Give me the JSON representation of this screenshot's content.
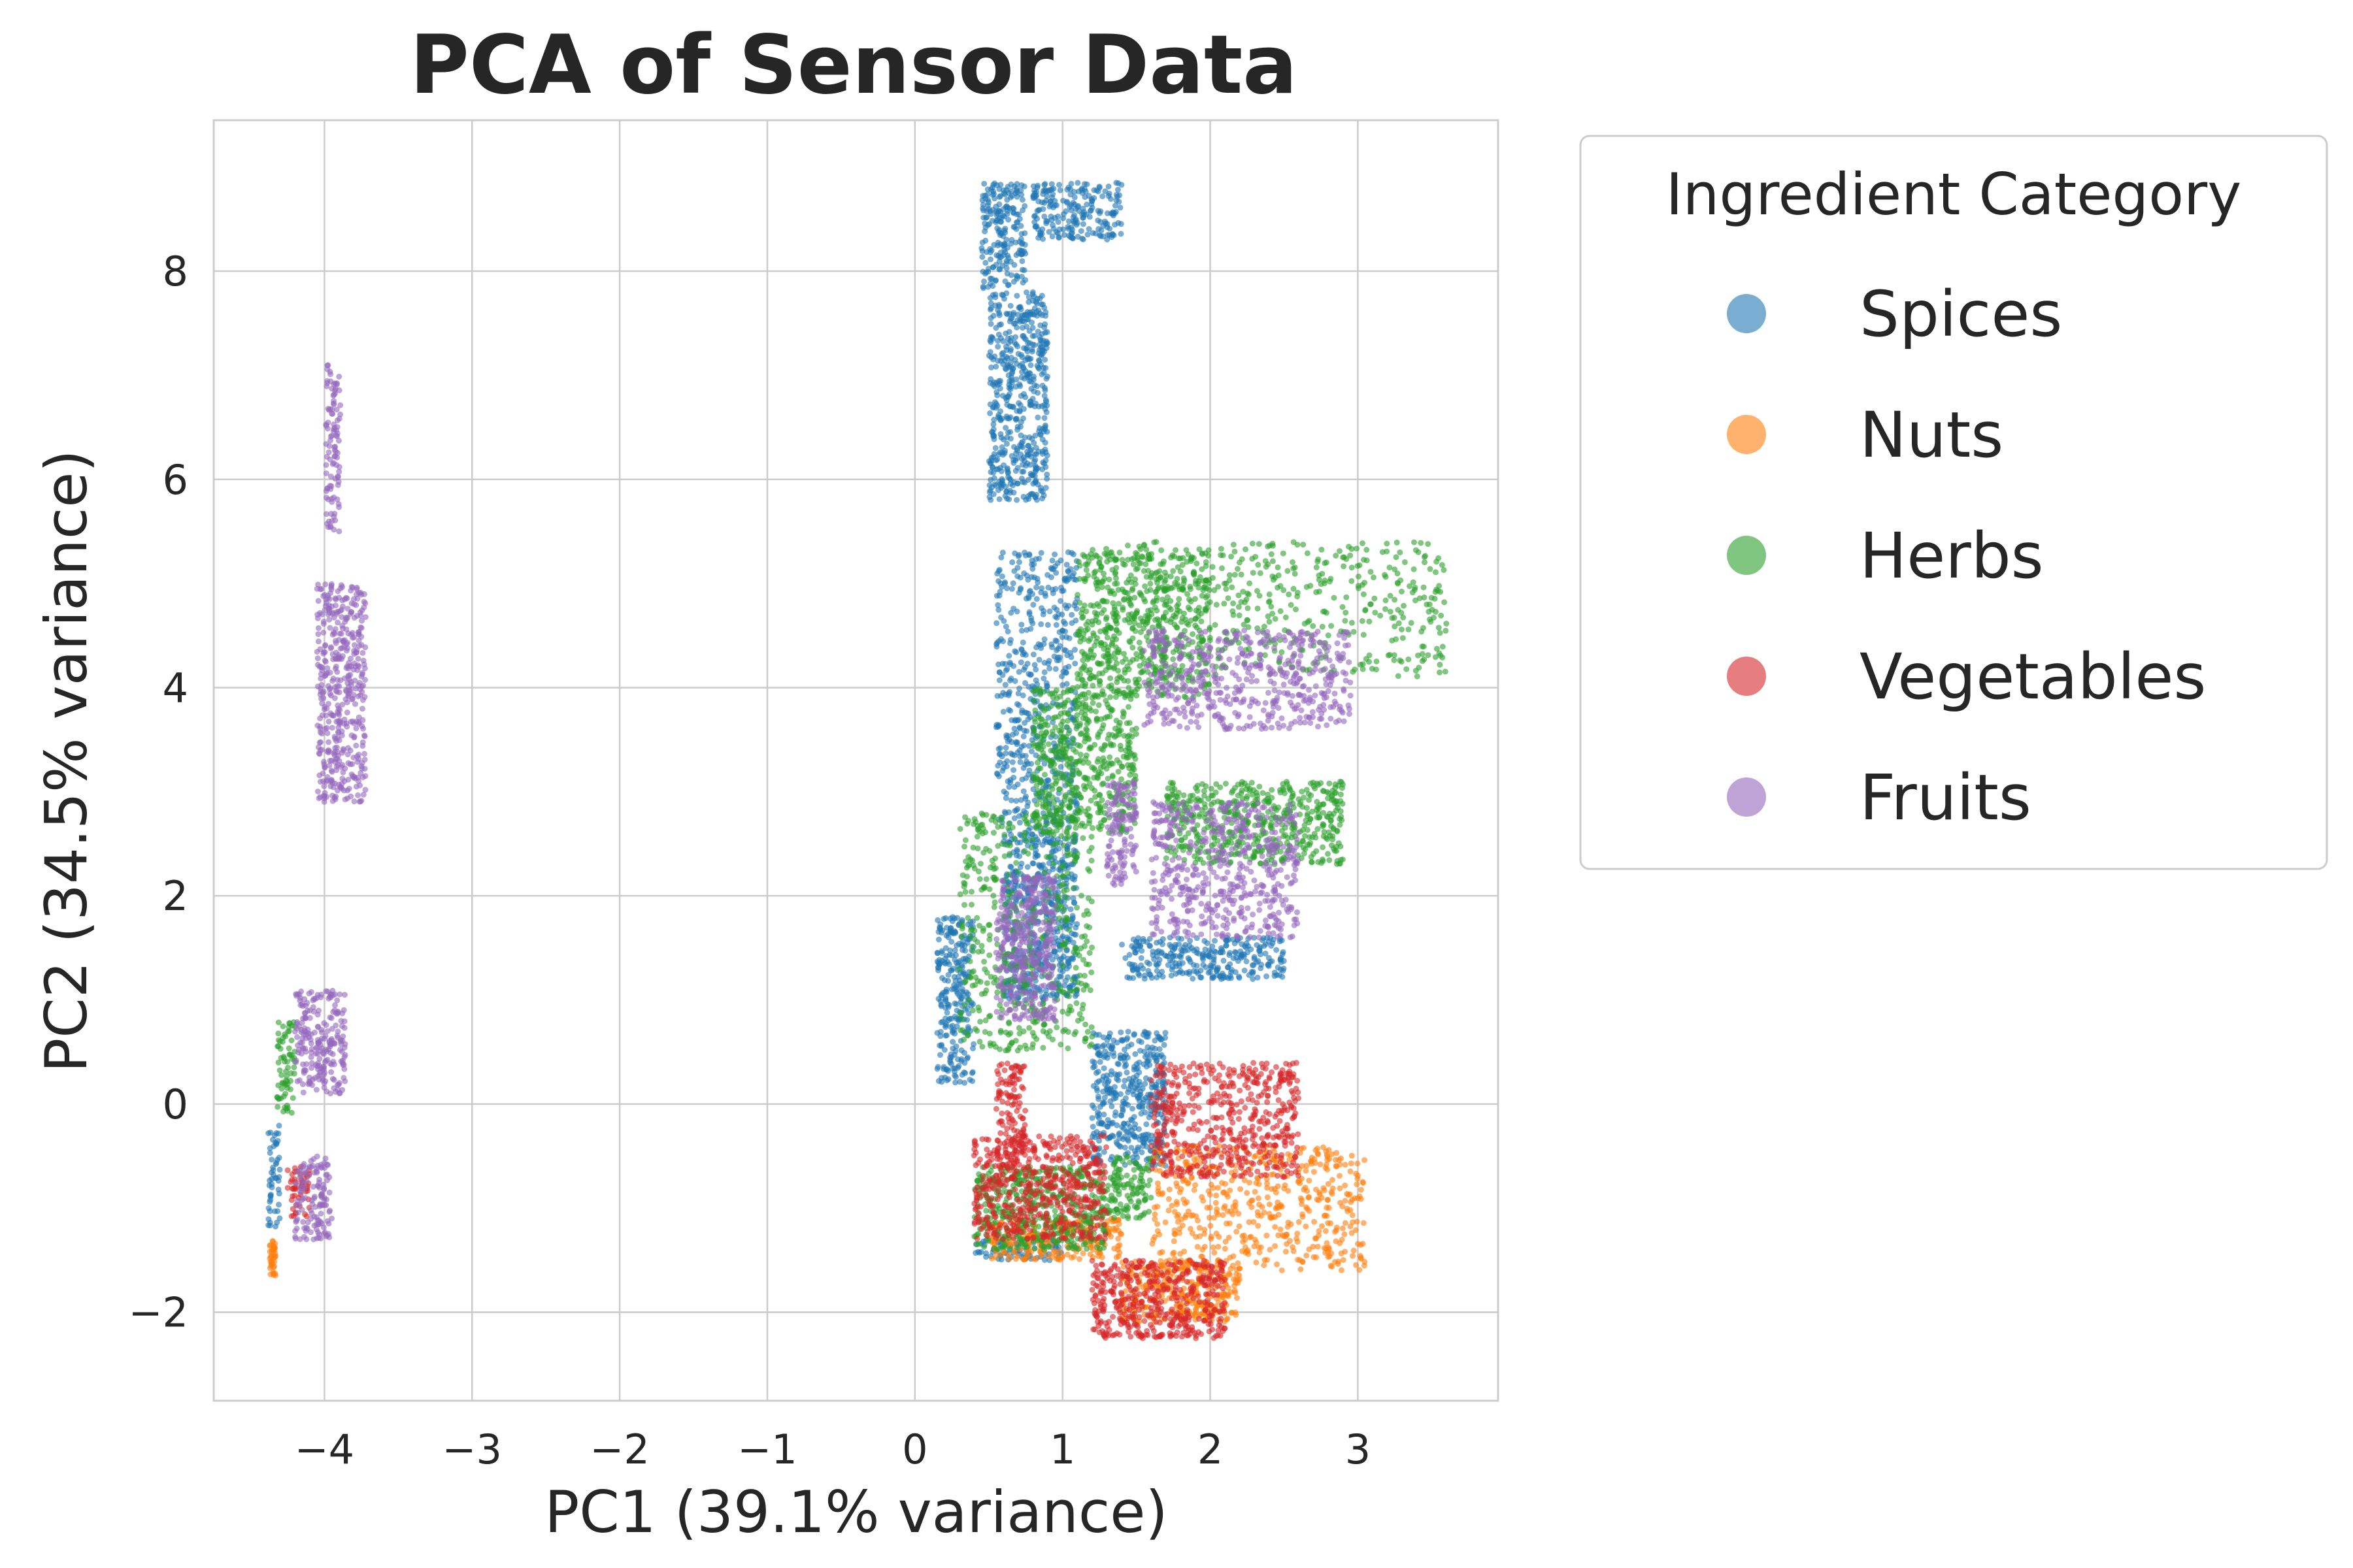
{
  "chart_data": {
    "type": "scatter",
    "title": "PCA of Sensor Data",
    "xlabel": "PC1 (39.1% variance)",
    "ylabel": "PC2 (34.5% variance)",
    "xlim": [
      -4.75,
      3.95
    ],
    "ylim": [
      -2.85,
      9.45
    ],
    "xticks": [
      -4,
      -3,
      -2,
      -1,
      0,
      1,
      2,
      3
    ],
    "yticks": [
      -2,
      0,
      2,
      4,
      6,
      8
    ],
    "xtick_labels": [
      "−4",
      "−3",
      "−2",
      "−1",
      "0",
      "1",
      "2",
      "3"
    ],
    "ytick_labels": [
      "−2",
      "0",
      "2",
      "4",
      "6",
      "8"
    ],
    "grid": true,
    "legend": {
      "title": "Ingredient Category",
      "placement": "outside-right-top"
    },
    "series": [
      {
        "name": "Spices",
        "color": "#1f77b4",
        "clusters": [
          {
            "x": [
              0.45,
              0.75
            ],
            "y": [
              7.8,
              8.85
            ]
          },
          {
            "x": [
              0.8,
              1.4
            ],
            "y": [
              8.3,
              8.85
            ]
          },
          {
            "x": [
              0.5,
              0.9
            ],
            "y": [
              5.8,
              7.8
            ]
          },
          {
            "x": [
              0.55,
              1.1
            ],
            "y": [
              2.6,
              5.3
            ]
          },
          {
            "x": [
              0.6,
              1.1
            ],
            "y": [
              1.0,
              2.6
            ]
          },
          {
            "x": [
              0.15,
              0.4
            ],
            "y": [
              0.2,
              1.8
            ]
          },
          {
            "x": [
              1.2,
              1.7
            ],
            "y": [
              -0.6,
              0.7
            ]
          },
          {
            "x": [
              1.4,
              2.5
            ],
            "y": [
              1.2,
              1.6
            ]
          },
          {
            "x": [
              0.4,
              1.0
            ],
            "y": [
              -1.5,
              -1.3
            ]
          },
          {
            "x": [
              -4.38,
              -4.3
            ],
            "y": [
              -1.2,
              -0.2
            ]
          }
        ]
      },
      {
        "name": "Nuts",
        "color": "#ff7f0e",
        "clusters": [
          {
            "x": [
              1.6,
              3.05
            ],
            "y": [
              -1.6,
              -0.4
            ]
          },
          {
            "x": [
              1.4,
              2.2
            ],
            "y": [
              -2.1,
              -1.5
            ]
          },
          {
            "x": [
              0.5,
              1.4
            ],
            "y": [
              -1.5,
              -1.1
            ]
          },
          {
            "x": [
              -4.37,
              -4.33
            ],
            "y": [
              -1.65,
              -1.3
            ]
          }
        ]
      },
      {
        "name": "Herbs",
        "color": "#2ca02c",
        "clusters": [
          {
            "x": [
              1.1,
              2.0
            ],
            "y": [
              3.9,
              5.3
            ]
          },
          {
            "x": [
              1.2,
              3.6
            ],
            "y": [
              4.1,
              5.4
            ]
          },
          {
            "x": [
              0.8,
              1.5
            ],
            "y": [
              2.6,
              4.0
            ]
          },
          {
            "x": [
              0.3,
              1.2
            ],
            "y": [
              0.5,
              2.8
            ]
          },
          {
            "x": [
              1.3,
              1.6
            ],
            "y": [
              -1.1,
              -0.5
            ]
          },
          {
            "x": [
              0.4,
              1.3
            ],
            "y": [
              -1.4,
              -0.6
            ]
          },
          {
            "x": [
              1.7,
              2.9
            ],
            "y": [
              2.3,
              3.1
            ]
          },
          {
            "x": [
              -4.32,
              -4.2
            ],
            "y": [
              -0.1,
              0.8
            ]
          }
        ]
      },
      {
        "name": "Vegetables",
        "color": "#d62728",
        "clusters": [
          {
            "x": [
              1.6,
              2.6
            ],
            "y": [
              -0.7,
              0.4
            ]
          },
          {
            "x": [
              0.4,
              1.3
            ],
            "y": [
              -1.3,
              -0.3
            ]
          },
          {
            "x": [
              0.55,
              0.75
            ],
            "y": [
              -0.6,
              0.4
            ]
          },
          {
            "x": [
              1.2,
              2.1
            ],
            "y": [
              -2.25,
              -1.5
            ]
          },
          {
            "x": [
              -4.25,
              -4.1
            ],
            "y": [
              -1.1,
              -0.6
            ]
          }
        ]
      },
      {
        "name": "Fruits",
        "color": "#9467bd",
        "clusters": [
          {
            "x": [
              -3.99,
              -3.89
            ],
            "y": [
              5.5,
              7.1
            ]
          },
          {
            "x": [
              -4.05,
              -3.72
            ],
            "y": [
              2.9,
              5.0
            ]
          },
          {
            "x": [
              -4.2,
              -3.85
            ],
            "y": [
              0.1,
              1.1
            ]
          },
          {
            "x": [
              -4.2,
              -3.95
            ],
            "y": [
              -1.3,
              -0.5
            ]
          },
          {
            "x": [
              1.55,
              2.95
            ],
            "y": [
              3.6,
              4.55
            ]
          },
          {
            "x": [
              1.6,
              2.6
            ],
            "y": [
              1.6,
              2.9
            ]
          },
          {
            "x": [
              0.55,
              0.95
            ],
            "y": [
              0.8,
              2.2
            ]
          },
          {
            "x": [
              1.3,
              1.5
            ],
            "y": [
              2.1,
              3.1
            ]
          }
        ]
      }
    ]
  }
}
